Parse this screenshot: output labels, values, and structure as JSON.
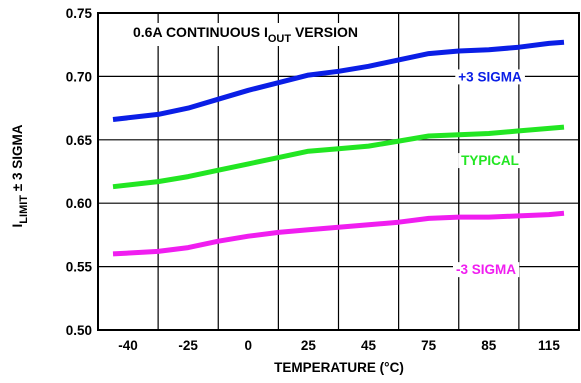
{
  "chart_data": {
    "type": "line",
    "title": {
      "prefix": "0.6A CONTINUOUS I",
      "subscript": "OUT",
      "suffix": " VERSION"
    },
    "xlabel": "TEMPERATURE (°C)",
    "ylabel": {
      "main": "I",
      "subscript": "LIMIT",
      "suffix": " ± 3 SIGMA"
    },
    "categories": [
      "-40",
      "-25",
      "0",
      "25",
      "45",
      "75",
      "85",
      "115"
    ],
    "x": [
      0,
      1,
      2,
      3,
      4,
      5,
      6,
      7
    ],
    "ylim": [
      0.5,
      0.75
    ],
    "yticks": [
      "0.50",
      "0.55",
      "0.60",
      "0.65",
      "0.70",
      "0.75"
    ],
    "ytick_values": [
      0.5,
      0.55,
      0.6,
      0.65,
      0.7,
      0.75
    ],
    "grid": true,
    "series": [
      {
        "name": "+3 SIGMA",
        "color": "#0a1ee6",
        "x": [
          -0.25,
          0.5,
          1,
          1.5,
          2,
          2.5,
          3,
          3.5,
          4,
          4.5,
          5,
          5.5,
          6,
          6.5,
          7,
          7.25
        ],
        "values": [
          0.666,
          0.67,
          0.675,
          0.682,
          0.689,
          0.695,
          0.701,
          0.704,
          0.708,
          0.713,
          0.718,
          0.72,
          0.721,
          0.723,
          0.726,
          0.727
        ]
      },
      {
        "name": "TYPICAL",
        "color": "#22e622",
        "x": [
          -0.25,
          0.5,
          1,
          1.5,
          2,
          2.5,
          3,
          3.5,
          4,
          4.5,
          5,
          5.5,
          6,
          6.5,
          7,
          7.25
        ],
        "values": [
          0.613,
          0.617,
          0.621,
          0.626,
          0.631,
          0.636,
          0.641,
          0.643,
          0.645,
          0.649,
          0.653,
          0.654,
          0.655,
          0.657,
          0.659,
          0.66
        ]
      },
      {
        "name": "-3 SIGMA",
        "color": "#f01ef0",
        "x": [
          -0.25,
          0.5,
          1,
          1.5,
          2,
          2.5,
          3,
          3.5,
          4,
          4.5,
          5,
          5.5,
          6,
          6.5,
          7,
          7.25
        ],
        "values": [
          0.56,
          0.562,
          0.565,
          0.57,
          0.574,
          0.577,
          0.579,
          0.581,
          0.583,
          0.585,
          0.588,
          0.589,
          0.589,
          0.59,
          0.591,
          0.592
        ]
      }
    ]
  }
}
